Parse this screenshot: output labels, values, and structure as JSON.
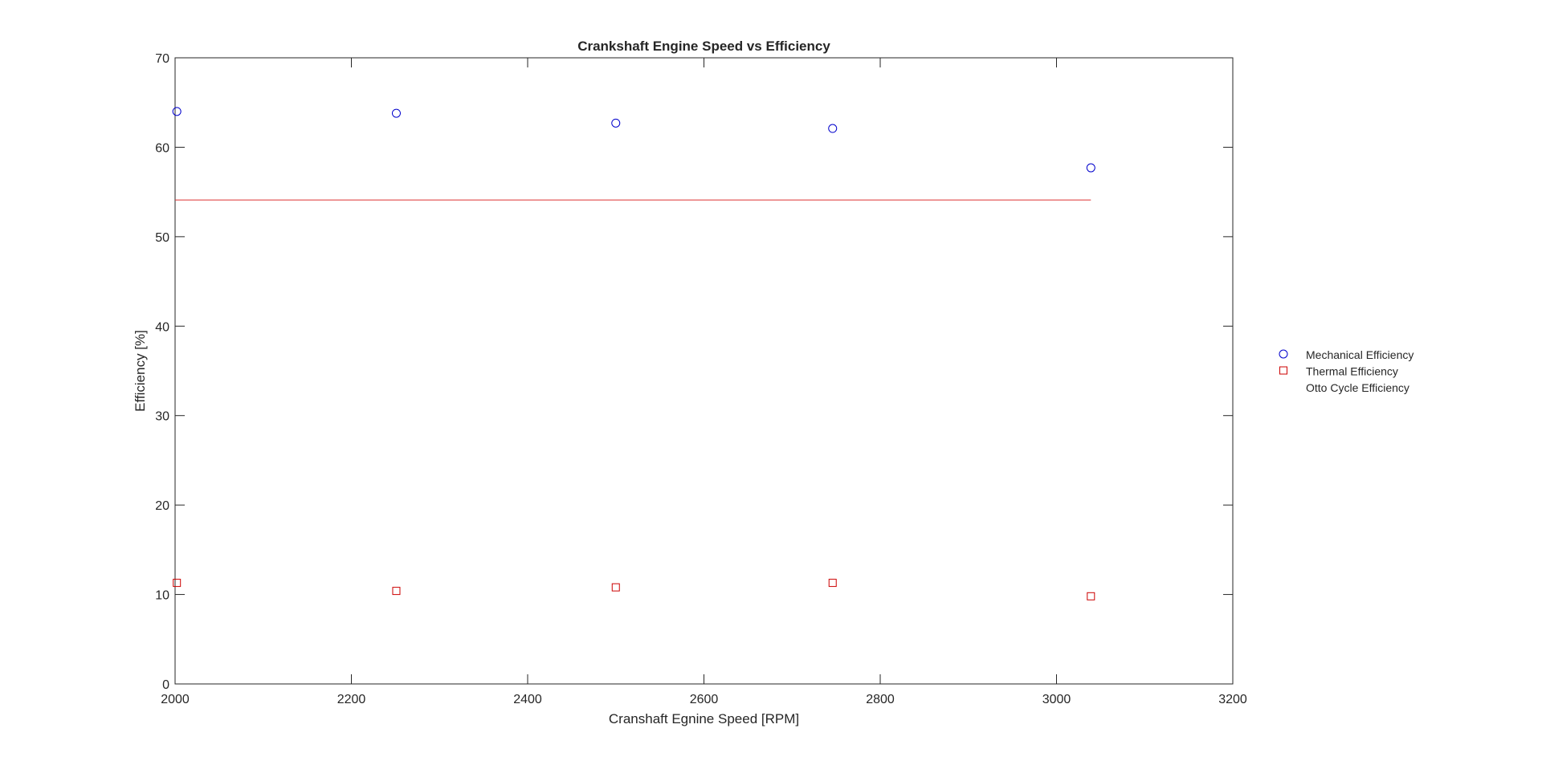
{
  "colors": {
    "mechanical": "#0000cc",
    "thermal": "#cc0000",
    "otto": "#dd3333",
    "axes": "#262626"
  },
  "chart_data": {
    "type": "scatter",
    "title": "Crankshaft Engine Speed vs Efficiency",
    "xlabel": "Cranshaft Egnine Speed [RPM]",
    "ylabel": "Efficiency [%]",
    "xlim": [
      2000,
      3200
    ],
    "ylim": [
      0,
      70
    ],
    "xticks": [
      "2000",
      "2200",
      "2400",
      "2600",
      "2800",
      "3000",
      "3200"
    ],
    "yticks": [
      "0",
      "10",
      "20",
      "30",
      "40",
      "50",
      "60",
      "70"
    ],
    "grid": false,
    "legend_position": "outside-right",
    "series": [
      {
        "name": "Mechanical Efficiency",
        "marker": "circle",
        "x": [
          2002,
          2251,
          2500,
          2746,
          3039
        ],
        "y": [
          64.0,
          63.8,
          62.7,
          62.1,
          57.7
        ]
      },
      {
        "name": "Thermal Efficiency",
        "marker": "square",
        "x": [
          2002,
          2251,
          2500,
          2746,
          3039
        ],
        "y": [
          11.3,
          10.4,
          10.8,
          11.3,
          9.8
        ]
      },
      {
        "name": "Otto Cycle Efficiency",
        "marker": "line",
        "x": [
          2000,
          3039
        ],
        "y": [
          54.1,
          54.1
        ]
      }
    ]
  }
}
